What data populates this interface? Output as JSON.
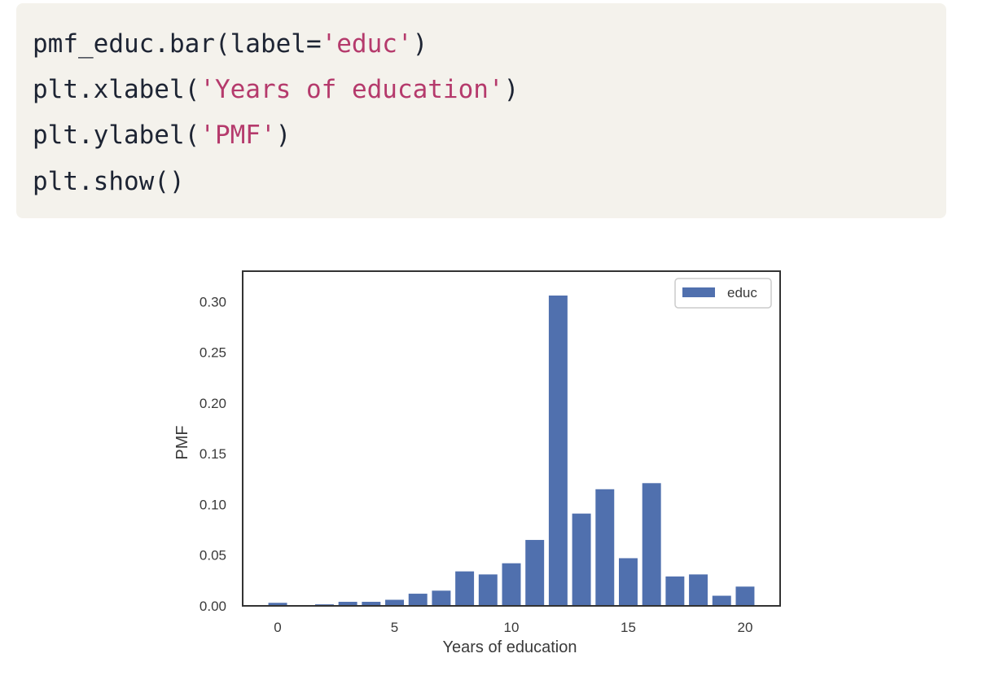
{
  "code": {
    "lines": [
      [
        {
          "t": "pmf_educ.bar(label=",
          "k": "plain"
        },
        {
          "t": "'educ'",
          "k": "str"
        },
        {
          "t": ")",
          "k": "plain"
        }
      ],
      [
        {
          "t": "plt.xlabel(",
          "k": "plain"
        },
        {
          "t": "'Years of education'",
          "k": "str"
        },
        {
          "t": ")",
          "k": "plain"
        }
      ],
      [
        {
          "t": "plt.ylabel(",
          "k": "plain"
        },
        {
          "t": "'PMF'",
          "k": "str"
        },
        {
          "t": ")",
          "k": "plain"
        }
      ],
      [
        {
          "t": "plt.show()",
          "k": "plain"
        }
      ]
    ]
  },
  "colors": {
    "bar": "#5070ae",
    "axis": "#333333",
    "text": "#3a3a3a"
  },
  "chart_data": {
    "type": "bar",
    "title": "",
    "xlabel": "Years of education",
    "ylabel": "PMF",
    "xlim": [
      -1.5,
      21.5
    ],
    "ylim": [
      0,
      0.33
    ],
    "x": [
      0,
      1,
      2,
      3,
      4,
      5,
      6,
      7,
      8,
      9,
      10,
      11,
      12,
      13,
      14,
      15,
      16,
      17,
      18,
      19,
      20
    ],
    "series": [
      {
        "name": "educ",
        "values": [
          0.003,
          0.0005,
          0.0015,
          0.004,
          0.004,
          0.006,
          0.012,
          0.015,
          0.034,
          0.031,
          0.042,
          0.065,
          0.306,
          0.091,
          0.115,
          0.047,
          0.121,
          0.029,
          0.031,
          0.01,
          0.019
        ]
      }
    ],
    "xticks": [
      0,
      5,
      10,
      15,
      20
    ],
    "xtick_labels": [
      "0",
      "5",
      "10",
      "15",
      "20"
    ],
    "yticks": [
      0,
      0.05,
      0.1,
      0.15,
      0.2,
      0.25,
      0.3
    ],
    "ytick_labels": [
      "0.00",
      "0.05",
      "0.10",
      "0.15",
      "0.20",
      "0.25",
      "0.30"
    ],
    "legend": {
      "position": "upper-right",
      "entries": [
        "educ"
      ]
    },
    "grid": false
  }
}
